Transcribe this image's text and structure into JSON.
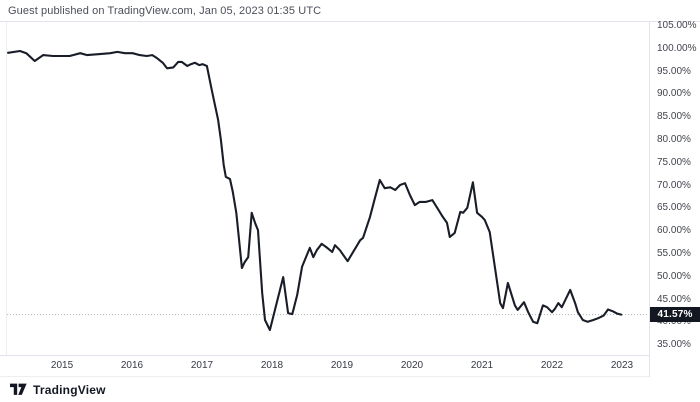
{
  "header": {
    "publish_info": "Guest published on TradingView.com, Jan 05, 2023 01:35 UTC"
  },
  "footer": {
    "brand": "TradingView"
  },
  "chart_data": {
    "type": "line",
    "title": "",
    "xlabel": "",
    "ylabel": "",
    "grid": "none",
    "line_color": "#191d28",
    "last_value": 41.57,
    "last_value_label": "41.57%",
    "xlim": [
      2014.114,
      2023.386
    ],
    "ylim": [
      32.72,
      105.75
    ],
    "x_ticks": [
      {
        "value": 2015,
        "label": "2015"
      },
      {
        "value": 2016,
        "label": "2016"
      },
      {
        "value": 2017,
        "label": "2017"
      },
      {
        "value": 2018,
        "label": "2018"
      },
      {
        "value": 2019,
        "label": "2019"
      },
      {
        "value": 2020,
        "label": "2020"
      },
      {
        "value": 2021,
        "label": "2021"
      },
      {
        "value": 2022,
        "label": "2022"
      },
      {
        "value": 2023,
        "label": "2023"
      }
    ],
    "y_ticks": [
      {
        "value": 105,
        "label": "105.00%"
      },
      {
        "value": 100,
        "label": "100.00%"
      },
      {
        "value": 95,
        "label": "95.00%"
      },
      {
        "value": 90,
        "label": "90.00%"
      },
      {
        "value": 85,
        "label": "85.00%"
      },
      {
        "value": 80,
        "label": "80.00%"
      },
      {
        "value": 75,
        "label": "75.00%"
      },
      {
        "value": 70,
        "label": "70.00%"
      },
      {
        "value": 65,
        "label": "65.00%"
      },
      {
        "value": 60,
        "label": "60.00%"
      },
      {
        "value": 55,
        "label": "55.00%"
      },
      {
        "value": 50,
        "label": "50.00%"
      },
      {
        "value": 45,
        "label": "45.00%"
      },
      {
        "value": 40,
        "label": "40.00%"
      },
      {
        "value": 35,
        "label": "35.00%"
      }
    ],
    "series": [
      {
        "name": "",
        "points": [
          [
            2014.23,
            99.0
          ],
          [
            2014.4,
            99.4
          ],
          [
            2014.49,
            98.9
          ],
          [
            2014.61,
            97.2
          ],
          [
            2014.73,
            98.5
          ],
          [
            2014.87,
            98.3
          ],
          [
            2015.11,
            98.3
          ],
          [
            2015.26,
            98.9
          ],
          [
            2015.36,
            98.5
          ],
          [
            2015.54,
            98.7
          ],
          [
            2015.69,
            98.9
          ],
          [
            2015.79,
            99.2
          ],
          [
            2015.9,
            98.9
          ],
          [
            2016.01,
            98.9
          ],
          [
            2016.11,
            98.5
          ],
          [
            2016.21,
            98.3
          ],
          [
            2016.29,
            98.5
          ],
          [
            2016.36,
            97.8
          ],
          [
            2016.44,
            96.8
          ],
          [
            2016.5,
            95.6
          ],
          [
            2016.59,
            95.8
          ],
          [
            2016.66,
            97.0
          ],
          [
            2016.71,
            97.0
          ],
          [
            2016.79,
            96.1
          ],
          [
            2016.84,
            96.5
          ],
          [
            2016.9,
            96.8
          ],
          [
            2016.96,
            96.3
          ],
          [
            2017.01,
            96.5
          ],
          [
            2017.07,
            96.1
          ],
          [
            2017.14,
            90.8
          ],
          [
            2017.23,
            84.3
          ],
          [
            2017.27,
            79.9
          ],
          [
            2017.31,
            74.4
          ],
          [
            2017.34,
            71.8
          ],
          [
            2017.4,
            71.3
          ],
          [
            2017.44,
            68.5
          ],
          [
            2017.49,
            63.9
          ],
          [
            2017.53,
            57.9
          ],
          [
            2017.57,
            51.8
          ],
          [
            2017.61,
            53.1
          ],
          [
            2017.66,
            54.2
          ],
          [
            2017.71,
            63.9
          ],
          [
            2017.76,
            61.6
          ],
          [
            2017.8,
            60.1
          ],
          [
            2017.86,
            46.3
          ],
          [
            2017.9,
            40.4
          ],
          [
            2017.97,
            38.2
          ],
          [
            2018.16,
            49.8
          ],
          [
            2018.23,
            41.9
          ],
          [
            2018.29,
            41.7
          ],
          [
            2018.36,
            45.9
          ],
          [
            2018.43,
            52.1
          ],
          [
            2018.54,
            56.2
          ],
          [
            2018.59,
            54.2
          ],
          [
            2018.64,
            55.7
          ],
          [
            2018.71,
            57.1
          ],
          [
            2018.79,
            56.2
          ],
          [
            2018.86,
            55.3
          ],
          [
            2018.9,
            56.8
          ],
          [
            2018.97,
            55.7
          ],
          [
            2019.08,
            53.3
          ],
          [
            2019.26,
            57.9
          ],
          [
            2019.3,
            58.4
          ],
          [
            2019.4,
            63.0
          ],
          [
            2019.47,
            67.1
          ],
          [
            2019.54,
            71.1
          ],
          [
            2019.61,
            69.3
          ],
          [
            2019.69,
            69.5
          ],
          [
            2019.76,
            68.9
          ],
          [
            2019.83,
            70.0
          ],
          [
            2019.9,
            70.4
          ],
          [
            2019.97,
            67.8
          ],
          [
            2020.04,
            65.6
          ],
          [
            2020.11,
            66.3
          ],
          [
            2020.2,
            66.3
          ],
          [
            2020.29,
            66.7
          ],
          [
            2020.36,
            65.0
          ],
          [
            2020.44,
            63.0
          ],
          [
            2020.5,
            61.7
          ],
          [
            2020.54,
            58.6
          ],
          [
            2020.61,
            59.5
          ],
          [
            2020.69,
            64.1
          ],
          [
            2020.73,
            63.9
          ],
          [
            2020.79,
            65.0
          ],
          [
            2020.87,
            70.6
          ],
          [
            2020.93,
            63.9
          ],
          [
            2021.0,
            63.0
          ],
          [
            2021.04,
            62.3
          ],
          [
            2021.11,
            59.7
          ],
          [
            2021.26,
            44.1
          ],
          [
            2021.3,
            43.0
          ],
          [
            2021.37,
            48.5
          ],
          [
            2021.47,
            43.6
          ],
          [
            2021.51,
            42.6
          ],
          [
            2021.6,
            44.3
          ],
          [
            2021.66,
            42.1
          ],
          [
            2021.73,
            40.0
          ],
          [
            2021.79,
            39.7
          ],
          [
            2021.87,
            43.6
          ],
          [
            2021.93,
            43.2
          ],
          [
            2022.0,
            42.1
          ],
          [
            2022.04,
            42.8
          ],
          [
            2022.09,
            44.1
          ],
          [
            2022.14,
            43.2
          ],
          [
            2022.26,
            47.0
          ],
          [
            2022.33,
            44.1
          ],
          [
            2022.37,
            42.1
          ],
          [
            2022.44,
            40.4
          ],
          [
            2022.51,
            40.0
          ],
          [
            2022.59,
            40.4
          ],
          [
            2022.66,
            40.8
          ],
          [
            2022.69,
            41.0
          ],
          [
            2022.74,
            41.4
          ],
          [
            2022.8,
            42.7
          ],
          [
            2022.87,
            42.3
          ],
          [
            2022.93,
            41.8
          ],
          [
            2022.99,
            41.57
          ]
        ]
      }
    ]
  }
}
